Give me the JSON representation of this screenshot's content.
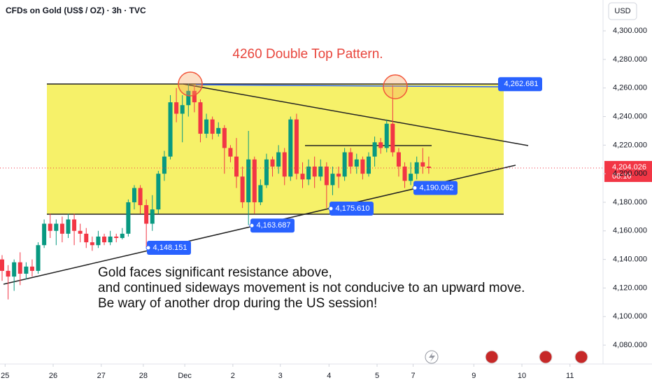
{
  "chart_data": {
    "type": "candlestick",
    "title": "CFDs on Gold (US$ / OZ) · 3h · TVC",
    "currency": "USD",
    "annotation_title": "4260 Double Top Pattern.",
    "annotation_text": [
      "Gold faces significant resistance above,",
      "and continued sideways movement is not conducive to an upward move.",
      "Be wary of another drop during the US session!"
    ],
    "up_color": "#089981",
    "down_color": "#f23645",
    "x": [
      0,
      1,
      2,
      3,
      4,
      5,
      6,
      7,
      8,
      9,
      10,
      11,
      12,
      13,
      14,
      15,
      16,
      17,
      18,
      19,
      20,
      21,
      22,
      23,
      24,
      25,
      26,
      27,
      28,
      29,
      30,
      31,
      32,
      33,
      34,
      35,
      36,
      37,
      38,
      39,
      40,
      41,
      42,
      43,
      44,
      45,
      46,
      47,
      48,
      49,
      50,
      51,
      52,
      53,
      54,
      55,
      56,
      57,
      58,
      59,
      60,
      61,
      62,
      63,
      64,
      65,
      66,
      67,
      68,
      69,
      70,
      71
    ],
    "open": [
      4140,
      4132,
      4128,
      4138,
      4130,
      4135,
      4132,
      4150,
      4165,
      4160,
      4165,
      4158,
      4168,
      4160,
      4158,
      4152,
      4150,
      4156,
      4152,
      4156,
      4155,
      4158,
      4180,
      4190,
      4178,
      4165,
      4175,
      4200,
      4212,
      4250,
      4242,
      4248,
      4258,
      4250,
      4228,
      4238,
      4228,
      4232,
      4218,
      4212,
      4198,
      4180,
      4210,
      4180,
      4192,
      4210,
      4205,
      4215,
      4198,
      4238,
      4200,
      4196,
      4205,
      4198,
      4205,
      4192,
      4200,
      4198,
      4215,
      4205,
      4210,
      4200,
      4212,
      4222,
      4218,
      4235,
      4215,
      4205,
      4195,
      4200,
      4208,
      4205
    ],
    "high": [
      4143,
      4136,
      4140,
      4145,
      4138,
      4140,
      4152,
      4168,
      4172,
      4168,
      4170,
      4172,
      4172,
      4165,
      4162,
      4156,
      4160,
      4158,
      4160,
      4158,
      4162,
      4182,
      4192,
      4192,
      4182,
      4185,
      4202,
      4216,
      4255,
      4260,
      4255,
      4263,
      4262,
      4252,
      4242,
      4240,
      4236,
      4234,
      4220,
      4225,
      4205,
      4230,
      4212,
      4196,
      4214,
      4212,
      4220,
      4218,
      4240,
      4242,
      4208,
      4210,
      4212,
      4210,
      4208,
      4205,
      4205,
      4218,
      4218,
      4214,
      4212,
      4215,
      4226,
      4225,
      4238,
      4262,
      4218,
      4208,
      4208,
      4212,
      4218,
      4212
    ],
    "low": [
      4125,
      4112,
      4118,
      4122,
      4126,
      4128,
      4130,
      4148,
      4155,
      4150,
      4152,
      4155,
      4150,
      4152,
      4148,
      4146,
      4148,
      4150,
      4150,
      4152,
      4154,
      4156,
      4175,
      4172,
      4148,
      4160,
      4172,
      4195,
      4210,
      4236,
      4222,
      4240,
      4243,
      4222,
      4225,
      4224,
      4226,
      4200,
      4208,
      4190,
      4176,
      4164,
      4172,
      4178,
      4190,
      4198,
      4200,
      4192,
      4195,
      4196,
      4190,
      4192,
      4190,
      4195,
      4176,
      4185,
      4190,
      4195,
      4200,
      4200,
      4196,
      4198,
      4205,
      4214,
      4215,
      4212,
      4198,
      4190,
      4192,
      4196,
      4200,
      4200
    ],
    "close": [
      4132,
      4128,
      4138,
      4130,
      4135,
      4132,
      4150,
      4165,
      4160,
      4165,
      4158,
      4168,
      4160,
      4158,
      4152,
      4150,
      4156,
      4152,
      4156,
      4155,
      4158,
      4180,
      4190,
      4178,
      4165,
      4175,
      4200,
      4212,
      4250,
      4242,
      4248,
      4258,
      4250,
      4228,
      4238,
      4228,
      4232,
      4218,
      4212,
      4198,
      4180,
      4210,
      4180,
      4192,
      4210,
      4205,
      4215,
      4198,
      4238,
      4200,
      4196,
      4205,
      4198,
      4205,
      4192,
      4200,
      4198,
      4215,
      4205,
      4210,
      4200,
      4212,
      4222,
      4218,
      4235,
      4215,
      4205,
      4195,
      4200,
      4208,
      4205,
      4204
    ],
    "xlim": [
      0,
      100
    ],
    "xticks": [
      {
        "value": 0.5,
        "label": "25"
      },
      {
        "value": 8.5,
        "label": "26"
      },
      {
        "value": 16.5,
        "label": "27"
      },
      {
        "value": 23.5,
        "label": "28"
      },
      {
        "value": 30.4,
        "label": "Dec"
      },
      {
        "value": 38.4,
        "label": "2"
      },
      {
        "value": 46.3,
        "label": "3"
      },
      {
        "value": 54.4,
        "label": "4"
      },
      {
        "value": 62.4,
        "label": "5"
      },
      {
        "value": 68.4,
        "label": "7"
      },
      {
        "value": 78.5,
        "label": "9"
      },
      {
        "value": 86.5,
        "label": "10"
      },
      {
        "value": 94.5,
        "label": "11"
      }
    ],
    "ylim": [
      4066.8,
      4321.6
    ],
    "yticks": [
      {
        "value": 4080,
        "label": "4,080.000"
      },
      {
        "value": 4100,
        "label": "4,100.000"
      },
      {
        "value": 4120,
        "label": "4,120.000"
      },
      {
        "value": 4140,
        "label": "4,140.000"
      },
      {
        "value": 4160,
        "label": "4,160.000"
      },
      {
        "value": 4180,
        "label": "4,180.000"
      },
      {
        "value": 4200,
        "label": "4,200.000"
      },
      {
        "value": 4220,
        "label": "4,220.000"
      },
      {
        "value": 4240,
        "label": "4,240.000"
      },
      {
        "value": 4260,
        "label": "4,260.000"
      },
      {
        "value": 4280,
        "label": "4,280.000"
      },
      {
        "value": 4300,
        "label": "4,300.000"
      }
    ],
    "last_price": {
      "value": 4204.026,
      "label": "4,204.026",
      "countdown": "08:10"
    },
    "price_points": [
      {
        "value": 4262.681,
        "label": "4,262.681"
      },
      {
        "value": 4190.062,
        "label": "4,190.062"
      },
      {
        "value": 4175.61,
        "label": "4,175.610"
      },
      {
        "value": 4163.687,
        "label": "4,163.687"
      },
      {
        "value": 4148.151,
        "label": "4,148.151"
      }
    ]
  }
}
